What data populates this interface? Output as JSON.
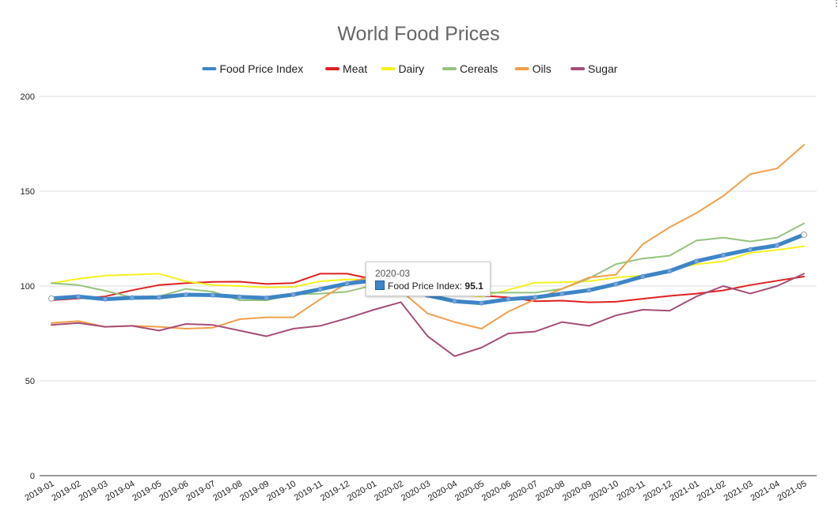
{
  "chart_data": {
    "type": "line",
    "title": "World Food Prices",
    "xlabel": "",
    "ylabel": "",
    "ylim": [
      0,
      200
    ],
    "yticks": [
      0,
      50,
      100,
      150,
      200
    ],
    "grid": true,
    "legend_position": "top-center",
    "categories": [
      "2019-01",
      "2019-02",
      "2019-03",
      "2019-04",
      "2019-05",
      "2019-06",
      "2019-07",
      "2019-08",
      "2019-09",
      "2019-10",
      "2019-11",
      "2019-12",
      "2020-01",
      "2020-02",
      "2020-03",
      "2020-04",
      "2020-05",
      "2020-06",
      "2020-07",
      "2020-08",
      "2020-09",
      "2020-10",
      "2020-11",
      "2020-12",
      "2021-01",
      "2021-02",
      "2021-03",
      "2021-04",
      "2021-05"
    ],
    "series": [
      {
        "name": "Food Price Index",
        "color": "#3d85c6",
        "highlight": true,
        "values": [
          93.4,
          94.4,
          93.1,
          93.8,
          94.0,
          95.4,
          95.2,
          94.3,
          93.7,
          95.5,
          98.3,
          101.3,
          102.9,
          99.7,
          95.1,
          92.0,
          91.0,
          93.1,
          94.0,
          95.9,
          97.8,
          101.0,
          105.0,
          107.9,
          113.1,
          116.3,
          119.2,
          121.4,
          127.1
        ]
      },
      {
        "name": "Meat",
        "color": "#e02020",
        "values": [
          92.5,
          93.4,
          94.5,
          97.8,
          100.5,
          101.5,
          102.2,
          102.3,
          101.1,
          101.6,
          106.5,
          106.5,
          103.5,
          98.5,
          96.0,
          95.8,
          95.0,
          94.0,
          92.0,
          92.3,
          91.4,
          91.7,
          93.3,
          94.8,
          96.0,
          97.7,
          100.5,
          102.8,
          105.0
        ]
      },
      {
        "name": "Dairy",
        "color": "#f7f01e",
        "values": [
          101.5,
          103.8,
          105.5,
          106.0,
          106.5,
          102.5,
          100.5,
          100.0,
          99.3,
          99.5,
          102.5,
          103.5,
          103.0,
          102.0,
          101.0,
          95.5,
          94.5,
          98.0,
          101.8,
          102.0,
          102.5,
          104.5,
          105.5,
          108.5,
          111.5,
          113.0,
          117.5,
          119.0,
          121.0
        ]
      },
      {
        "name": "Cereals",
        "color": "#93c47d",
        "values": [
          101.5,
          100.5,
          97.5,
          94.0,
          94.5,
          98.5,
          97.0,
          92.5,
          92.5,
          95.5,
          96.0,
          97.0,
          100.5,
          101.0,
          99.5,
          97.0,
          96.5,
          96.5,
          96.5,
          98.5,
          104.0,
          111.5,
          114.5,
          116.0,
          124.0,
          125.5,
          123.5,
          125.5,
          133.0
        ]
      },
      {
        "name": "Oils",
        "color": "#f0a04b",
        "values": [
          80.5,
          81.5,
          78.5,
          79.0,
          78.5,
          77.5,
          78.0,
          82.5,
          83.5,
          83.5,
          93.0,
          101.5,
          105.5,
          97.5,
          85.5,
          81.0,
          77.5,
          86.5,
          93.0,
          98.5,
          104.5,
          106.0,
          122.0,
          131.0,
          138.5,
          147.5,
          159.0,
          162.0,
          174.5
        ]
      },
      {
        "name": "Sugar",
        "color": "#a64d79",
        "values": [
          79.5,
          80.5,
          78.5,
          79.0,
          76.5,
          80.0,
          79.5,
          76.5,
          73.5,
          77.5,
          79.0,
          83.0,
          87.5,
          91.5,
          73.5,
          63.0,
          67.5,
          75.0,
          76.0,
          81.0,
          79.0,
          84.5,
          87.5,
          87.0,
          94.5,
          100.0,
          96.0,
          100.0,
          106.5
        ]
      }
    ]
  },
  "tooltip": {
    "category": "2020-03",
    "series_label": "Food Price Index:",
    "value": "95.1"
  }
}
